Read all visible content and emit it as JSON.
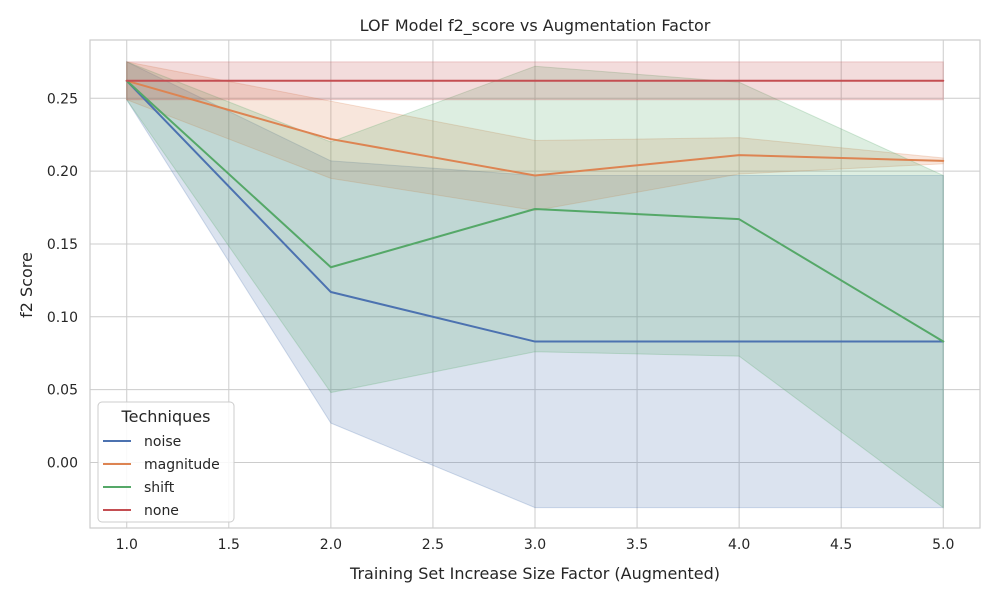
{
  "chart_data": {
    "type": "line",
    "title": "LOF Model f2_score vs Augmentation Factor",
    "xlabel": "Training Set Increase Size Factor (Augmented)",
    "ylabel": "f2 Score",
    "xlim": [
      0.82,
      5.18
    ],
    "ylim": [
      -0.045,
      0.29
    ],
    "xticks": [
      1.0,
      1.5,
      2.0,
      2.5,
      3.0,
      3.5,
      4.0,
      4.5,
      5.0
    ],
    "xtick_labels": [
      "1.0",
      "1.5",
      "2.0",
      "2.5",
      "3.0",
      "3.5",
      "4.0",
      "4.5",
      "5.0"
    ],
    "yticks": [
      0.0,
      0.05,
      0.1,
      0.15,
      0.2,
      0.25
    ],
    "ytick_labels": [
      "0.00",
      "0.05",
      "0.10",
      "0.15",
      "0.20",
      "0.25"
    ],
    "grid": true,
    "legend": {
      "title": "Techniques",
      "placement": "lower-left"
    },
    "x": [
      1,
      2,
      3,
      4,
      5
    ],
    "series": [
      {
        "name": "noise",
        "color": "#4c72b0",
        "values": [
          0.262,
          0.117,
          0.083,
          0.083,
          0.083
        ],
        "lower": [
          0.249,
          0.027,
          -0.031,
          -0.031,
          -0.031
        ],
        "upper": [
          0.275,
          0.207,
          0.197,
          0.197,
          0.197
        ]
      },
      {
        "name": "magnitude",
        "color": "#dd8452",
        "values": [
          0.262,
          0.222,
          0.197,
          0.211,
          0.207
        ],
        "lower": [
          0.249,
          0.195,
          0.173,
          0.198,
          0.205
        ],
        "upper": [
          0.275,
          0.248,
          0.221,
          0.223,
          0.209
        ]
      },
      {
        "name": "shift",
        "color": "#55a868",
        "values": [
          0.262,
          0.134,
          0.174,
          0.167,
          0.083
        ],
        "lower": [
          0.249,
          0.048,
          0.076,
          0.073,
          -0.031
        ],
        "upper": [
          0.275,
          0.22,
          0.272,
          0.261,
          0.197
        ]
      },
      {
        "name": "none",
        "color": "#c44e52",
        "values": [
          0.262,
          0.262,
          0.262,
          0.262,
          0.262
        ],
        "lower": [
          0.249,
          0.249,
          0.249,
          0.249,
          0.249
        ],
        "upper": [
          0.275,
          0.275,
          0.275,
          0.275,
          0.275
        ]
      }
    ]
  }
}
